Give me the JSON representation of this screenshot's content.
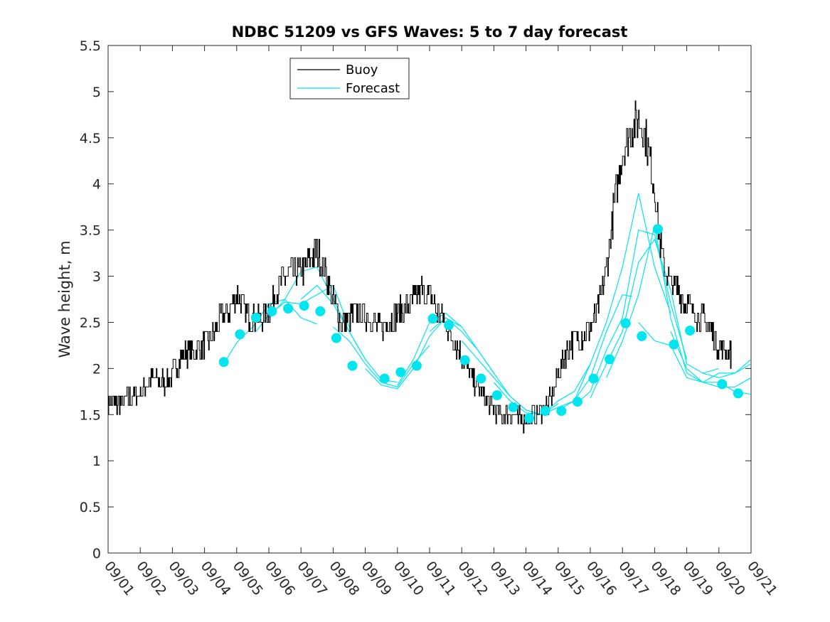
{
  "chart_data": {
    "type": "line",
    "title": "NDBC 51209 vs GFS Waves: 5 to 7 day forecast",
    "xlabel": "",
    "ylabel": "Wave height, m",
    "xlim": [
      0,
      20
    ],
    "ylim": [
      0,
      5.5
    ],
    "x_ticks": [
      0,
      1,
      2,
      3,
      4,
      5,
      6,
      7,
      8,
      9,
      10,
      11,
      12,
      13,
      14,
      15,
      16,
      17,
      18,
      19,
      20
    ],
    "x_tick_labels": [
      "09/01",
      "09/02",
      "09/03",
      "09/04",
      "09/05",
      "09/06",
      "09/07",
      "09/08",
      "09/09",
      "09/10",
      "09/11",
      "09/12",
      "09/13",
      "09/14",
      "09/15",
      "09/16",
      "09/17",
      "09/18",
      "09/19",
      "09/20",
      "09/21"
    ],
    "y_ticks": [
      0,
      0.5,
      1,
      1.5,
      2,
      2.5,
      3,
      3.5,
      4,
      4.5,
      5,
      5.5
    ],
    "y_tick_labels": [
      "0",
      "0.5",
      "1",
      "1.5",
      "2",
      "2.5",
      "3",
      "3.5",
      "4",
      "4.5",
      "5",
      "5.5"
    ],
    "grid": false,
    "legend": {
      "position": "top-center",
      "entries": [
        "Buoy",
        "Forecast"
      ]
    },
    "colors": {
      "buoy": "#000000",
      "forecast": "#00e5ee",
      "axes": "#262626"
    },
    "buoy_series": {
      "name": "Buoy",
      "x": [
        0,
        0.25,
        0.5,
        0.75,
        1.0,
        1.25,
        1.5,
        1.75,
        2.0,
        2.25,
        2.5,
        2.75,
        3.0,
        3.25,
        3.5,
        3.75,
        4.0,
        4.25,
        4.5,
        4.75,
        5.0,
        5.25,
        5.5,
        5.75,
        6.0,
        6.25,
        6.5,
        6.75,
        7.0,
        7.25,
        7.5,
        7.75,
        8.0,
        8.25,
        8.5,
        8.75,
        9.0,
        9.25,
        9.5,
        9.75,
        10.0,
        10.25,
        10.5,
        10.75,
        11.0,
        11.25,
        11.5,
        11.75,
        12.0,
        12.25,
        12.5,
        12.75,
        13.0,
        13.25,
        13.5,
        13.75,
        14.0,
        14.25,
        14.5,
        14.75,
        15.0,
        15.25,
        15.5,
        15.75,
        16.0,
        16.25,
        16.5,
        16.75,
        17.0,
        17.15,
        17.3,
        17.45,
        17.6,
        17.75,
        17.9,
        18.0,
        18.25,
        18.5,
        18.75,
        19.0,
        19.2,
        19.4
      ],
      "values": [
        1.65,
        1.6,
        1.65,
        1.7,
        1.75,
        1.85,
        1.9,
        1.85,
        1.95,
        2.1,
        2.2,
        2.2,
        2.25,
        2.35,
        2.55,
        2.6,
        2.8,
        2.6,
        2.55,
        2.55,
        2.65,
        2.85,
        3.0,
        3.05,
        3.05,
        3.15,
        3.3,
        3.05,
        2.75,
        2.5,
        2.55,
        2.6,
        2.6,
        2.5,
        2.45,
        2.5,
        2.6,
        2.65,
        2.75,
        2.85,
        2.8,
        2.6,
        2.5,
        2.3,
        2.15,
        1.95,
        1.8,
        1.65,
        1.55,
        1.5,
        1.5,
        1.45,
        1.45,
        1.5,
        1.55,
        1.65,
        1.95,
        2.2,
        2.3,
        2.35,
        2.45,
        2.65,
        3.1,
        3.8,
        4.35,
        4.6,
        4.7,
        4.45,
        3.95,
        3.4,
        3.1,
        2.95,
        2.9,
        2.85,
        2.75,
        2.7,
        2.6,
        2.55,
        2.4,
        2.25,
        2.2,
        2.15
      ]
    },
    "forecast_runs": [
      {
        "x": [
          3.6,
          4.0,
          4.5,
          5.0,
          5.5,
          6.0,
          6.5
        ],
        "values": [
          2.05,
          2.28,
          2.45,
          2.7,
          2.75,
          2.55,
          2.48
        ]
      },
      {
        "x": [
          4.6,
          5.0,
          5.5,
          6.0,
          6.5,
          7.0,
          7.5
        ],
        "values": [
          2.4,
          2.58,
          2.72,
          2.7,
          2.8,
          2.9,
          2.45
        ]
      },
      {
        "x": [
          5.0,
          5.5,
          6.0,
          6.5,
          7.0,
          7.5,
          8.0
        ],
        "values": [
          2.55,
          2.75,
          3.05,
          3.1,
          2.75,
          2.4,
          2.1
        ]
      },
      {
        "x": [
          6.0,
          6.5,
          7.0,
          7.5,
          8.0,
          8.5,
          9.0
        ],
        "values": [
          2.75,
          2.9,
          2.7,
          2.4,
          2.1,
          1.88,
          1.85
        ]
      },
      {
        "x": [
          7.0,
          7.5,
          8.0,
          8.5,
          9.0,
          9.5,
          10.0
        ],
        "values": [
          2.45,
          2.3,
          2.05,
          1.85,
          1.8,
          2.05,
          2.25
        ]
      },
      {
        "x": [
          8.0,
          8.5,
          9.0,
          9.5,
          10.0,
          10.5,
          11.0
        ],
        "values": [
          2.0,
          1.82,
          1.78,
          2.0,
          2.35,
          2.55,
          2.45
        ]
      },
      {
        "x": [
          9.0,
          9.5,
          10.0,
          10.5,
          11.0,
          11.5,
          12.0
        ],
        "values": [
          1.82,
          2.1,
          2.5,
          2.6,
          2.45,
          2.2,
          1.95
        ]
      },
      {
        "x": [
          10.0,
          10.5,
          11.0,
          11.5,
          12.0,
          12.5,
          13.0
        ],
        "values": [
          2.4,
          2.55,
          2.4,
          2.2,
          1.95,
          1.7,
          1.55
        ]
      },
      {
        "x": [
          11.0,
          11.5,
          12.0,
          12.5,
          13.0,
          13.5,
          14.0
        ],
        "values": [
          2.3,
          2.1,
          1.9,
          1.7,
          1.55,
          1.5,
          1.62
        ]
      },
      {
        "x": [
          12.0,
          12.5,
          13.0,
          13.5,
          14.0,
          14.5,
          15.0
        ],
        "values": [
          1.85,
          1.65,
          1.52,
          1.5,
          1.65,
          1.75,
          2.05
        ]
      },
      {
        "x": [
          13.0,
          13.5,
          14.0,
          14.5,
          15.0,
          15.5,
          16.0,
          16.3
        ],
        "values": [
          1.55,
          1.5,
          1.58,
          1.65,
          1.9,
          2.4,
          2.8,
          2.78
        ]
      },
      {
        "x": [
          14.0,
          14.5,
          15.0,
          15.5,
          16.0,
          16.5,
          17.0,
          17.5
        ],
        "values": [
          1.55,
          1.65,
          2.05,
          2.5,
          3.1,
          3.9,
          3.1,
          2.6
        ]
      },
      {
        "x": [
          14.5,
          15.0,
          15.5,
          16.0,
          16.5,
          17.0,
          17.5,
          18.0
        ],
        "values": [
          1.6,
          1.75,
          2.2,
          2.55,
          3.5,
          3.45,
          2.7,
          2.1
        ]
      },
      {
        "x": [
          15.0,
          15.5,
          16.0,
          16.5,
          17.0,
          17.5,
          18.0,
          18.5,
          19.0
        ],
        "values": [
          1.68,
          2.05,
          2.4,
          3.15,
          3.4,
          2.85,
          2.05,
          1.95,
          2.0
        ]
      },
      {
        "x": [
          15.5,
          16.0,
          16.5,
          17.0,
          17.5,
          18.0,
          18.5,
          19.0,
          19.5,
          20.0
        ],
        "values": [
          1.9,
          2.3,
          2.8,
          3.55,
          2.55,
          1.95,
          1.85,
          1.95,
          1.95,
          2.05
        ]
      },
      {
        "x": [
          16.5,
          17.0,
          17.5,
          18.0,
          18.5,
          19.0,
          19.5,
          20.0
        ],
        "values": [
          2.5,
          2.3,
          2.25,
          1.9,
          1.85,
          1.8,
          1.8,
          1.9
        ]
      },
      {
        "x": [
          17.5,
          18.0,
          18.5,
          19.0,
          19.5,
          20.0
        ],
        "values": [
          2.4,
          2.0,
          1.85,
          1.85,
          1.75,
          1.72
        ]
      },
      {
        "x": [
          18.5,
          19.0,
          19.5,
          20.0
        ],
        "values": [
          1.95,
          1.9,
          1.95,
          2.1
        ]
      }
    ],
    "forecast_markers": {
      "x": [
        3.6,
        4.1,
        4.6,
        5.1,
        5.6,
        6.1,
        6.6,
        7.1,
        7.6,
        8.6,
        9.1,
        9.6,
        10.1,
        10.6,
        11.1,
        11.6,
        12.1,
        12.6,
        13.1,
        13.6,
        14.1,
        14.6,
        15.1,
        15.6,
        16.1,
        16.6,
        17.1,
        17.6,
        18.1,
        19.1,
        19.6
      ],
      "values": [
        2.07,
        2.37,
        2.55,
        2.62,
        2.65,
        2.68,
        2.62,
        2.33,
        2.03,
        1.89,
        1.96,
        2.03,
        2.54,
        2.47,
        2.09,
        1.89,
        1.71,
        1.58,
        1.46,
        1.54,
        1.54,
        1.64,
        1.89,
        2.1,
        2.49,
        2.35,
        3.51,
        2.26,
        2.41,
        1.83,
        1.73
      ]
    }
  }
}
